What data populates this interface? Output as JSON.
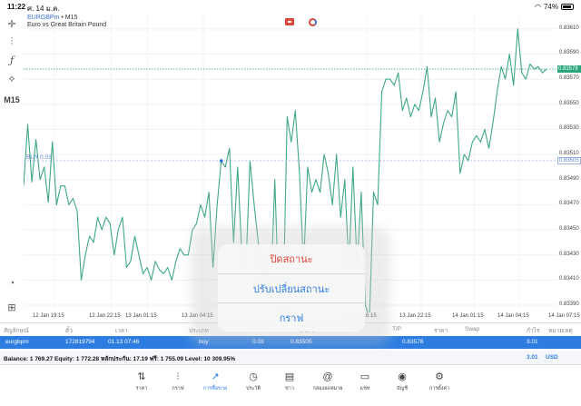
{
  "status_bar": {
    "time": "11:22",
    "date": "ศ. 14 ม.ค.",
    "battery": "74%",
    "battery_level": 0.74
  },
  "left_toolbar": {
    "timeframe": "M15"
  },
  "chart": {
    "symbol": "EURGBPm",
    "separator": " • ",
    "timeframe": "M15",
    "description": "Euro vs Great Britain Pound",
    "line_color": "#3fa882",
    "current_price": "0.83578",
    "buy_price": "0.83505",
    "buy_label": "BUY 0.03"
  },
  "chart_data": {
    "type": "line",
    "yrange": [
      0.8339,
      0.8362
    ],
    "y_ticks": [
      "0.83610",
      "0.83590",
      "0.83570",
      "0.83550",
      "0.83530",
      "0.83510",
      "0.83490",
      "0.83470",
      "0.83450",
      "0.83430",
      "0.83410",
      "0.83390"
    ],
    "x_ticks": [
      "12 Jan 19:15",
      "12 Jan 22:15",
      "13 Jan 01:15",
      "13 Jan 04:15",
      "13 Jan 16:15",
      "13 Jan 22:15",
      "14 Jan 01:15",
      "14 Jan 04:15",
      "14 Jan 07:15"
    ],
    "series": [
      {
        "values": [
          0.83485,
          0.83534,
          0.83488,
          0.83522,
          0.8349,
          0.835,
          0.83472,
          0.8352,
          0.8347,
          0.83485,
          0.83485,
          0.8347,
          0.83475,
          0.83465,
          0.8341,
          0.8343,
          0.83445,
          0.8344,
          0.8346,
          0.8345,
          0.8346,
          0.83455,
          0.8343,
          0.8345,
          0.8346,
          0.8342,
          0.83425,
          0.83445,
          0.8343,
          0.83415,
          0.8342,
          0.8341,
          0.83425,
          0.83418,
          0.83415,
          0.8342,
          0.8341,
          0.83425,
          0.83435,
          0.8343,
          0.8343,
          0.8345,
          0.83455,
          0.8347,
          0.8346,
          0.8348,
          0.8342,
          0.8347,
          0.83505,
          0.835,
          0.83515,
          0.8344,
          0.835,
          0.8343,
          0.8342,
          0.83505,
          0.8347,
          0.8344,
          0.834,
          0.8343,
          0.83395,
          0.8349,
          0.8339,
          0.8338,
          0.8354,
          0.8352,
          0.83545,
          0.83495,
          0.8342,
          0.835,
          0.8348,
          0.8349,
          0.8348,
          0.8351,
          0.83495,
          0.8347,
          0.8351,
          0.8346,
          0.8349,
          0.8342,
          0.835,
          0.8342,
          0.8348,
          0.8339,
          0.8338,
          0.8348,
          0.8347,
          0.8356,
          0.8357,
          0.8357,
          0.83565,
          0.83575,
          0.83545,
          0.83555,
          0.8354,
          0.8355,
          0.83545,
          0.8356,
          0.8358,
          0.8354,
          0.83555,
          0.8352,
          0.83535,
          0.83545,
          0.8354,
          0.8356,
          0.83495,
          0.8351,
          0.83505,
          0.8352,
          0.83525,
          0.8352,
          0.8353,
          0.83515,
          0.83535,
          0.8356,
          0.8358,
          0.8357,
          0.8359,
          0.83565,
          0.8361,
          0.83575,
          0.8357,
          0.83582,
          0.83578,
          0.8358,
          0.83575,
          0.83578
        ]
      }
    ]
  },
  "table": {
    "headers": [
      "สัญลักษณ์",
      "ตั๋ว",
      "เวลา",
      "ประเภท",
      "Volume",
      "ราคา",
      "S/L",
      "T/P",
      "ราคา",
      "Swap",
      "กำไร",
      "หมายเหตุ"
    ],
    "row": {
      "symbol": "eurgbpm",
      "ticket": "172819794",
      "time": "01.13 07:46",
      "type": "buy",
      "volume": "0.03",
      "open_price": "0.83505",
      "current_price": "0.83578",
      "profit": "3.01"
    },
    "balance_line": "Balance: 1 769.27 Equity: 1 772.28 หลักประกัน: 17.19 ฟรี: 1 755.09 Level: 10 309.95%",
    "total_profit": "3.01",
    "currency": "USD"
  },
  "menu": {
    "close_position": "ปิดสถานะ",
    "modify_position": "ปรับเปลี่ยนสถานะ",
    "chart": "กราฟ"
  },
  "tab_bar": [
    {
      "label": "ราคา",
      "icon": "quotes-icon"
    },
    {
      "label": "กราฟ",
      "icon": "chart-icon"
    },
    {
      "label": "การซื้อขาย",
      "icon": "trade-icon"
    },
    {
      "label": "ประวัติ",
      "icon": "history-icon"
    },
    {
      "label": "ข่าว",
      "icon": "news-icon"
    },
    {
      "label": "กล่องจดหมาย",
      "icon": "mailbox-icon"
    },
    {
      "label": "แชท",
      "icon": "chat-icon"
    },
    {
      "label": "บัญชี",
      "icon": "account-icon"
    },
    {
      "label": "การตั้งค่า",
      "icon": "settings-icon"
    }
  ]
}
